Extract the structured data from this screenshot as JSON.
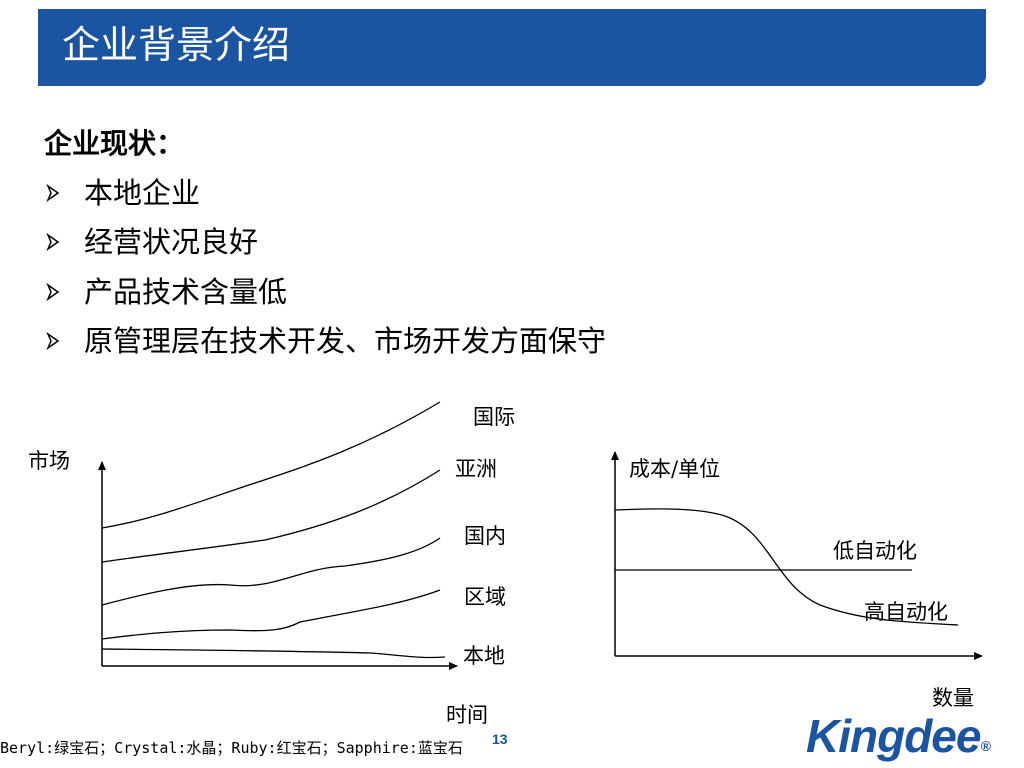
{
  "title": "企业背景介绍",
  "status_heading": "企业现状：",
  "bullets": [
    "本地企业",
    "经营状况良好",
    "产品技术含量低",
    "原管理层在技术开发、市场开发方面保守"
  ],
  "chart_left": {
    "y_label": "市场",
    "x_label": "时间",
    "curves": [
      "国际",
      "亚洲",
      "国内",
      "区域",
      "本地"
    ]
  },
  "chart_right": {
    "y_label": "成本/单位",
    "x_label": "数量",
    "lines": [
      "低自动化",
      "高自动化"
    ]
  },
  "footer_note": "Beryl:绿宝石；Crystal:水晶；Ruby:红宝石；Sapphire:蓝宝石",
  "page_number": "13",
  "logo": {
    "text": "Kingdee",
    "mark": "®",
    "color": "#1b54a0"
  },
  "colors": {
    "title_bar": "#1b54a0",
    "title_text": "#ffffff"
  }
}
